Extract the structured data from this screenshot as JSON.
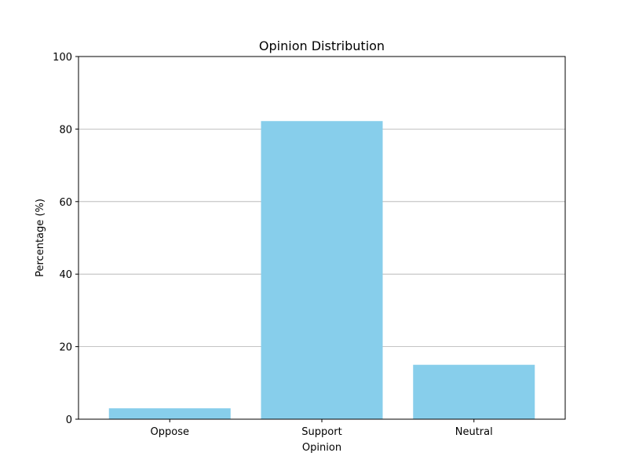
{
  "chart_data": {
    "type": "bar",
    "title": "Opinion Distribution",
    "xlabel": "Opinion",
    "ylabel": "Percentage (%)",
    "categories": [
      "Oppose",
      "Support",
      "Neutral"
    ],
    "values": [
      3,
      82.2,
      15
    ],
    "ylim": [
      0,
      100
    ],
    "yticks": [
      0,
      20,
      40,
      60,
      80,
      100
    ],
    "grid": "y-axis",
    "bar_color": "#87CEEB",
    "grid_color": "#b0b0b0"
  }
}
